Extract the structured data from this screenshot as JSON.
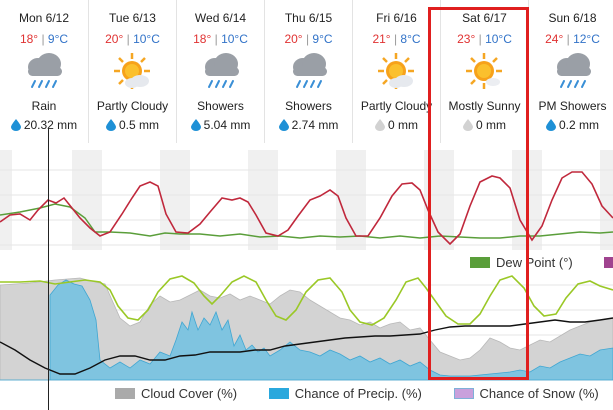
{
  "days": [
    {
      "name": "Mon 6/12",
      "hi": "18°",
      "lo": "9°C",
      "icon": "rain-cloud-icon",
      "condition": "Rain",
      "precip": "20.32 mm",
      "drop": "blue"
    },
    {
      "name": "Tue 6/13",
      "hi": "20°",
      "lo": "10°C",
      "icon": "partly-cloudy-icon",
      "condition": "Partly Cloudy",
      "precip": "0.5 mm",
      "drop": "blue"
    },
    {
      "name": "Wed 6/14",
      "hi": "18°",
      "lo": "10°C",
      "icon": "rain-cloud-icon",
      "condition": "Showers",
      "precip": "5.04 mm",
      "drop": "blue"
    },
    {
      "name": "Thu 6/15",
      "hi": "20°",
      "lo": "9°C",
      "icon": "rain-cloud-icon",
      "condition": "Showers",
      "precip": "2.74 mm",
      "drop": "blue"
    },
    {
      "name": "Fri 6/16",
      "hi": "21°",
      "lo": "8°C",
      "icon": "partly-cloudy-icon",
      "condition": "Partly Cloudy",
      "precip": "0 mm",
      "drop": "gray"
    },
    {
      "name": "Sat 6/17",
      "hi": "23°",
      "lo": "10°C",
      "icon": "mostly-sunny-icon",
      "condition": "Mostly Sunny",
      "precip": "0 mm",
      "drop": "gray"
    },
    {
      "name": "Sun 6/18",
      "hi": "24°",
      "lo": "12°C",
      "icon": "rain-cloud-icon",
      "condition": "PM Showers",
      "precip": "0.2 mm",
      "drop": "blue"
    }
  ],
  "legend_top": [
    {
      "label": "Dew Point (°)",
      "color": "#5a9e3a"
    },
    {
      "label": "",
      "color": "#a0438f"
    }
  ],
  "legend_bottom": [
    {
      "label": "Cloud Cover (%)",
      "color": "#aaaaaa"
    },
    {
      "label": "Chance of Precip. (%)",
      "color": "#29a8dd"
    },
    {
      "label": "Chance of Snow (%)",
      "color": "#c9a0dc"
    }
  ],
  "colors": {
    "temperature": "#c0283c",
    "dew_point": "#5a9e3a",
    "humidity": "#9ac826",
    "pressure": "#111111",
    "cloud": "#cfcfcf",
    "precip": "#6bbcdc",
    "highlight": "#e01f1f"
  }
}
